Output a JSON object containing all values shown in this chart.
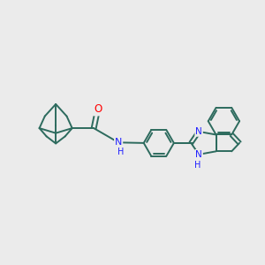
{
  "bg_color": "#ebebeb",
  "bond_color": "#2d6b5e",
  "bond_width": 1.4,
  "N_color": "#2020ff",
  "O_color": "#ff0000",
  "figsize": [
    3.0,
    3.0
  ],
  "dpi": 100,
  "xlim": [
    0,
    10
  ],
  "ylim": [
    0,
    10
  ]
}
